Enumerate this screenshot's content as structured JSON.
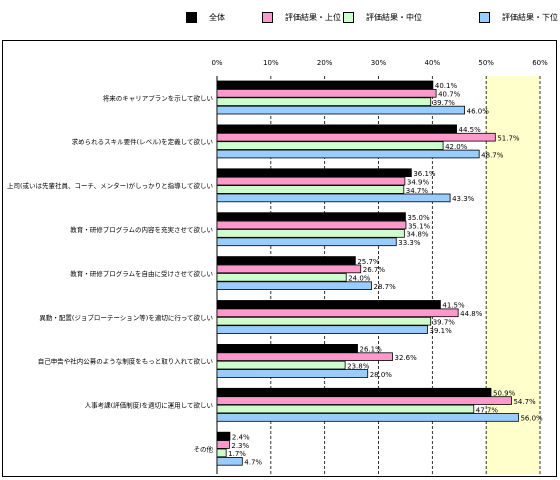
{
  "chart_data": {
    "type": "bar",
    "orientation": "horizontal",
    "categories": [
      "将来のキャリアプランを示して欲しい",
      "求められるスキル要件(レベル)を定義して欲しい",
      "上司(或いは先輩社員、コーチ、メンター)がしっかりと指導して欲しい",
      "教育・研修プログラムの内容を充実させて欲しい",
      "教育・研修プログラムを自由に受けさせて欲しい",
      "異動・配置(ジョブローテーション等)を適切に行って欲しい",
      "自己申告や社内公募のような制度をもっと取り入れて欲しい",
      "人事考課(評価制度)を適切に運用して欲しい",
      "その他"
    ],
    "series": [
      {
        "name": "全体",
        "color": "#000000",
        "values": [
          40.1,
          44.5,
          36.1,
          35.0,
          25.7,
          41.5,
          26.1,
          50.9,
          2.4
        ],
        "labels": [
          "40.1%",
          "44.5%",
          "36.1%",
          "35.0%",
          "25.7%",
          "41.5%",
          "26.1%",
          "50.9%",
          "2.4%"
        ]
      },
      {
        "name": "評価結果・上位",
        "color": "#ff99cc",
        "values": [
          40.7,
          51.7,
          34.9,
          35.1,
          26.7,
          44.8,
          32.6,
          54.7,
          2.3
        ],
        "labels": [
          "40.7%",
          "51.7%",
          "34.9%",
          "35.1%",
          "26.7%",
          "44.8%",
          "32.6%",
          "54.7%",
          "2.3%"
        ]
      },
      {
        "name": "評価結果・中位",
        "color": "#ccffcc",
        "values": [
          39.7,
          42.0,
          34.7,
          34.8,
          24.0,
          39.7,
          23.8,
          47.7,
          1.7
        ],
        "labels": [
          "39.7%",
          "42.0%",
          "34.7%",
          "34.8%",
          "24.0%",
          "39.7%",
          "23.8%",
          "47.7%",
          "1.7%"
        ]
      },
      {
        "name": "評価結果・下位",
        "color": "#99ccff",
        "values": [
          46.0,
          48.7,
          43.3,
          33.3,
          28.7,
          39.1,
          28.0,
          56.0,
          4.7
        ],
        "labels": [
          "46.0%",
          "48.7%",
          "43.3%",
          "33.3%",
          "28.7%",
          "39.1%",
          "28.0%",
          "56.0%",
          "4.7%"
        ]
      }
    ],
    "xlim": [
      0,
      60
    ],
    "xticks": [
      0,
      10,
      20,
      30,
      40,
      50,
      60
    ],
    "xtick_labels": [
      "0%",
      "10%",
      "20%",
      "30%",
      "40%",
      "50%",
      "60%"
    ],
    "grid": "vertical dashed at each 10%",
    "highlight_range": [
      50,
      60
    ],
    "highlight_color": "#ffffcc",
    "legend_position": "top-right"
  }
}
